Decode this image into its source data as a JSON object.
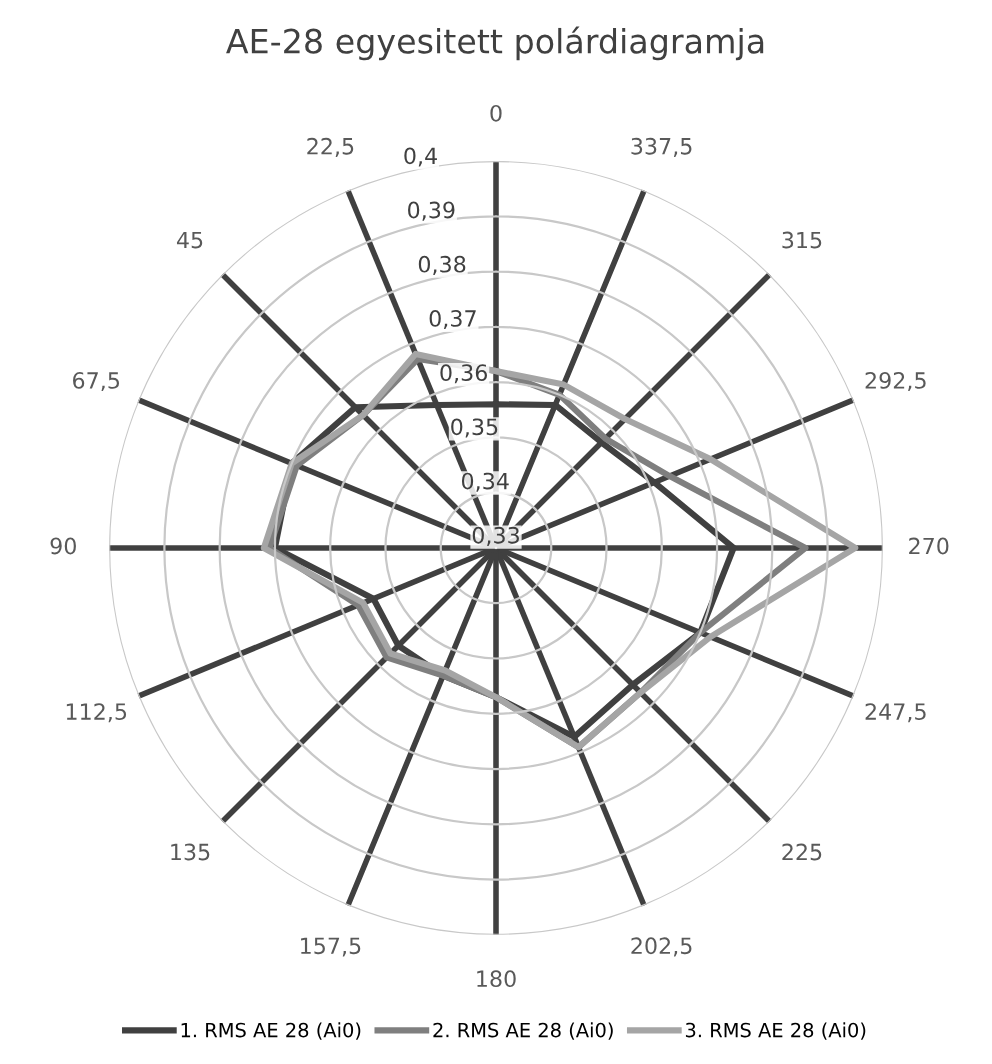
{
  "chart_data": {
    "type": "radar",
    "title": "AE-28 egyesitett polárdiagramja",
    "categories": [
      "0",
      "337,5",
      "315",
      "292,5",
      "270",
      "247,5",
      "225",
      "202,5",
      "180",
      "157,5",
      "135",
      "112,5",
      "90",
      "67,5",
      "45",
      "22,5"
    ],
    "series": [
      {
        "name": "1. RMS AE 28 (Ai0)",
        "color": "#404040",
        "values": [
          0.356,
          0.358,
          0.357,
          0.361,
          0.373,
          0.37,
          0.365,
          0.367,
          0.357,
          0.355,
          0.355,
          0.354,
          0.37,
          0.37,
          0.366,
          0.358
        ]
      },
      {
        "name": "2. RMS AE 28 (Ai0)",
        "color": "#7f7f7f",
        "values": [
          0.362,
          0.36,
          0.358,
          0.364,
          0.386,
          0.37,
          0.367,
          0.369,
          0.357,
          0.355,
          0.358,
          0.357,
          0.371,
          0.369,
          0.364,
          0.367
        ]
      },
      {
        "name": "3. RMS AE 28 (Ai0)",
        "color": "#a5a5a5",
        "values": [
          0.362,
          0.362,
          0.363,
          0.372,
          0.395,
          0.372,
          0.367,
          0.369,
          0.357,
          0.354,
          0.357,
          0.356,
          0.372,
          0.37,
          0.364,
          0.368
        ]
      }
    ],
    "ylim": [
      0.33,
      0.4
    ],
    "yticks": [
      {
        "value": 0.33,
        "label": "0,33"
      },
      {
        "value": 0.34,
        "label": "0,34"
      },
      {
        "value": 0.35,
        "label": "0,35"
      },
      {
        "value": 0.36,
        "label": "0,36"
      },
      {
        "value": 0.37,
        "label": "0,37"
      },
      {
        "value": 0.38,
        "label": "0,38"
      },
      {
        "value": 0.39,
        "label": "0,39"
      },
      {
        "value": 0.4,
        "label": "0,4"
      }
    ],
    "grid": true,
    "legend": "bottom",
    "marker": "none",
    "line_style": "solid"
  }
}
